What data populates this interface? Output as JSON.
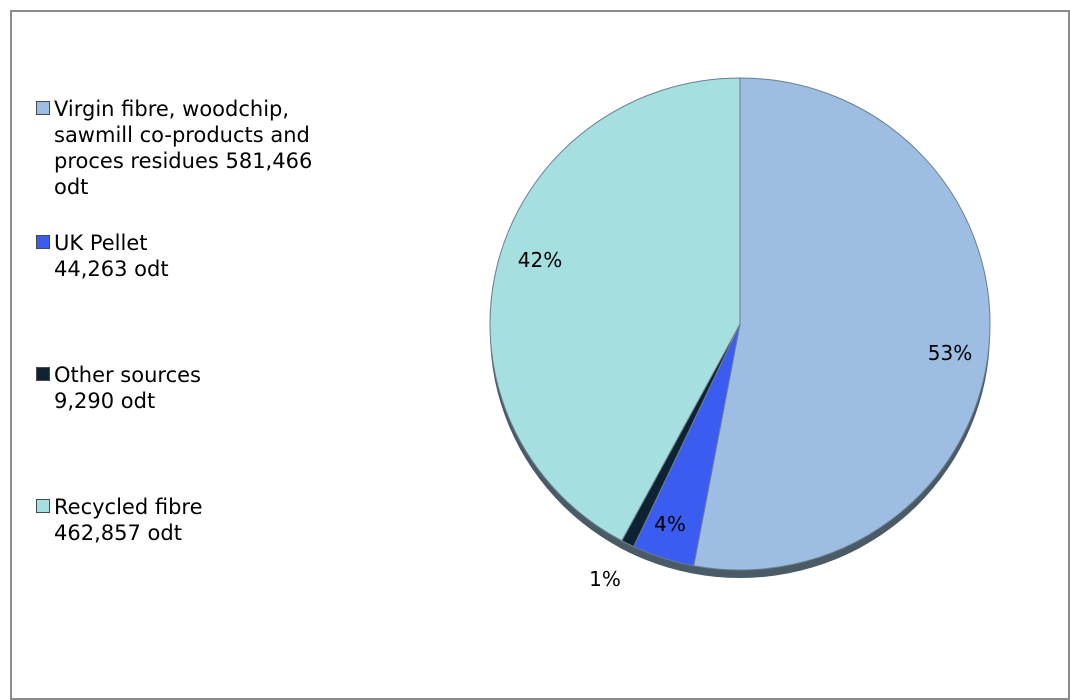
{
  "chart_data": {
    "type": "pie",
    "title": "",
    "slices": [
      {
        "label": "Virgin fibre, woodchip,\nsawmill co-products and\nproces residues   581,466\nodt",
        "percent_label": "53%",
        "value": 581466,
        "color": "#9dbde3"
      },
      {
        "label": "UK Pellet\n44,263 odt",
        "percent_label": "4%",
        "value": 44263,
        "color": "#3a5cf0"
      },
      {
        "label": "Other sources\n9,290 odt",
        "percent_label": "1%",
        "value": 9290,
        "color": "#0f2233"
      },
      {
        "label": "Recycled fibre\n462,857 odt",
        "percent_label": "42%",
        "value": 462857,
        "color": "#a6dfe0"
      }
    ],
    "legend_position": "left"
  }
}
